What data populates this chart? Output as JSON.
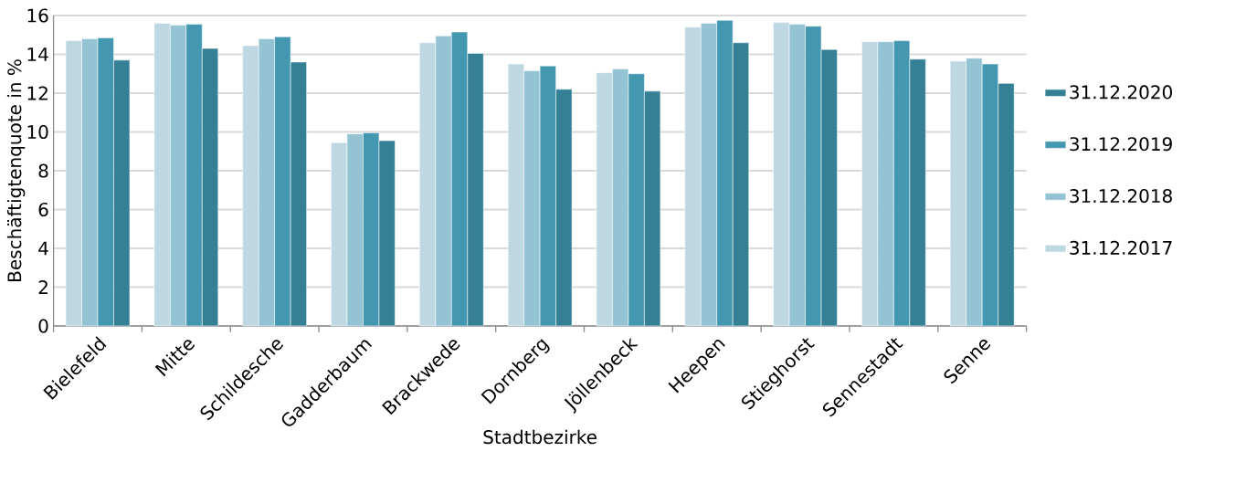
{
  "chart_data": {
    "type": "bar",
    "xlabel": "Stadtbezirke",
    "ylabel": "Beschäftigtenquote in %",
    "categories": [
      "Bielefeld",
      "Mitte",
      "Schildesche",
      "Gadderbaum",
      "Brackwede",
      "Dornberg",
      "Jöllenbeck",
      "Heepen",
      "Stieghorst",
      "Sennestadt",
      "Senne"
    ],
    "series": [
      {
        "name": "31.12.2017",
        "color": "#bdd8e3",
        "values": [
          14.7,
          15.6,
          14.45,
          9.45,
          14.6,
          13.5,
          13.05,
          15.4,
          15.65,
          14.65,
          13.65
        ]
      },
      {
        "name": "31.12.2018",
        "color": "#94c3d4",
        "values": [
          14.8,
          15.5,
          14.8,
          9.9,
          14.95,
          13.15,
          13.25,
          15.6,
          15.55,
          14.65,
          13.8
        ]
      },
      {
        "name": "31.12.2019",
        "color": "#4397b0",
        "values": [
          14.85,
          15.55,
          14.9,
          9.95,
          15.15,
          13.4,
          13.0,
          15.75,
          15.45,
          14.7,
          13.5
        ]
      },
      {
        "name": "31.12.2020",
        "color": "#358094",
        "values": [
          13.7,
          14.3,
          13.6,
          9.55,
          14.05,
          12.2,
          12.1,
          14.6,
          14.25,
          13.75,
          12.5
        ]
      }
    ],
    "ylim": [
      0,
      16
    ],
    "yticks": [
      0,
      2,
      4,
      6,
      8,
      10,
      12,
      14,
      16
    ],
    "grid": "y",
    "legend": "right"
  }
}
